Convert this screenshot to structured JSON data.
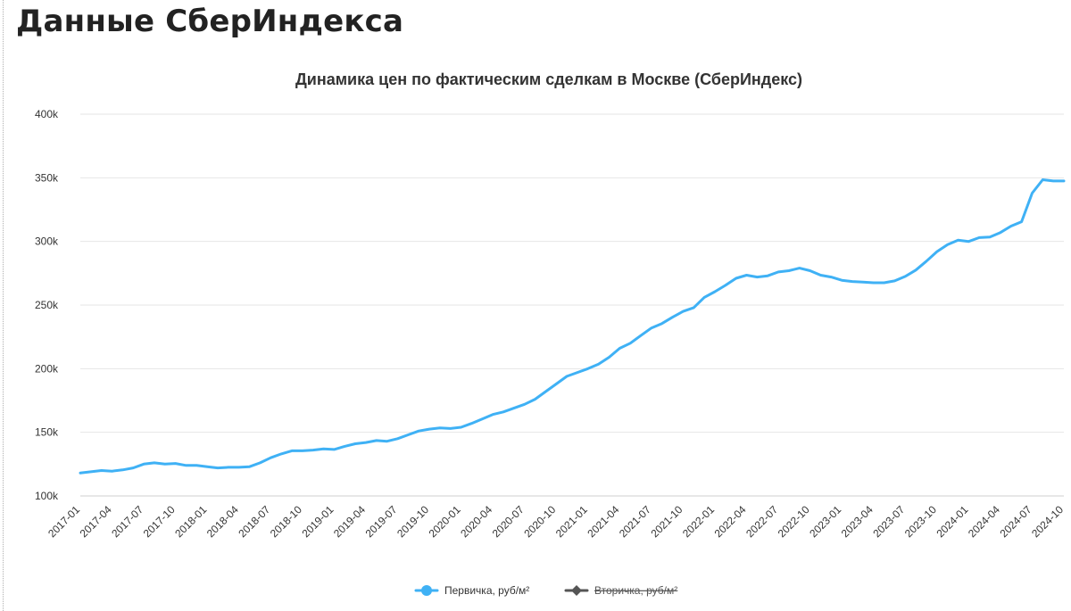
{
  "page": {
    "title": "Данные СберИндекса"
  },
  "chart_data": {
    "type": "line",
    "title": "Динамика цен по фактическим сделкам в Москве (СберИндекс)",
    "xlabel": "",
    "ylabel": "",
    "ylim": [
      100000,
      400000
    ],
    "y_ticks": [
      {
        "value": 100000,
        "label": "100k"
      },
      {
        "value": 150000,
        "label": "150k"
      },
      {
        "value": 200000,
        "label": "200k"
      },
      {
        "value": 250000,
        "label": "250k"
      },
      {
        "value": 300000,
        "label": "300k"
      },
      {
        "value": 350000,
        "label": "350k"
      },
      {
        "value": 400000,
        "label": "400k"
      }
    ],
    "x_ticks": [
      "2017-01",
      "2017-04",
      "2017-07",
      "2017-10",
      "2018-01",
      "2018-04",
      "2018-07",
      "2018-10",
      "2019-01",
      "2019-04",
      "2019-07",
      "2019-10",
      "2020-01",
      "2020-04",
      "2020-07",
      "2020-10",
      "2021-01",
      "2021-04",
      "2021-07",
      "2021-10",
      "2022-01",
      "2022-04",
      "2022-07",
      "2022-10",
      "2023-01",
      "2023-04",
      "2023-07",
      "2023-10",
      "2024-01",
      "2024-04",
      "2024-07",
      "2024-10"
    ],
    "grid": true,
    "legend_position": "bottom",
    "series": [
      {
        "name": "Первичка, руб/м²",
        "color": "#3fb1f5",
        "visible": true,
        "points": [
          [
            "2017-01",
            118000
          ],
          [
            "2017-02",
            119000
          ],
          [
            "2017-03",
            120000
          ],
          [
            "2017-04",
            119500
          ],
          [
            "2017-05",
            120500
          ],
          [
            "2017-06",
            122000
          ],
          [
            "2017-07",
            125000
          ],
          [
            "2017-08",
            126000
          ],
          [
            "2017-09",
            125000
          ],
          [
            "2017-10",
            125500
          ],
          [
            "2017-11",
            124000
          ],
          [
            "2017-12",
            124000
          ],
          [
            "2018-01",
            123000
          ],
          [
            "2018-02",
            122000
          ],
          [
            "2018-03",
            122500
          ],
          [
            "2018-04",
            122500
          ],
          [
            "2018-05",
            123000
          ],
          [
            "2018-06",
            126000
          ],
          [
            "2018-07",
            130000
          ],
          [
            "2018-08",
            133000
          ],
          [
            "2018-09",
            135500
          ],
          [
            "2018-10",
            135500
          ],
          [
            "2018-11",
            136000
          ],
          [
            "2018-12",
            137000
          ],
          [
            "2019-01",
            136500
          ],
          [
            "2019-02",
            139000
          ],
          [
            "2019-03",
            141000
          ],
          [
            "2019-04",
            142000
          ],
          [
            "2019-05",
            143500
          ],
          [
            "2019-06",
            143000
          ],
          [
            "2019-07",
            145000
          ],
          [
            "2019-08",
            148000
          ],
          [
            "2019-09",
            151000
          ],
          [
            "2019-10",
            152500
          ],
          [
            "2019-11",
            153500
          ],
          [
            "2019-12",
            153000
          ],
          [
            "2020-01",
            154000
          ],
          [
            "2020-02",
            157000
          ],
          [
            "2020-03",
            160500
          ],
          [
            "2020-04",
            164000
          ],
          [
            "2020-05",
            166000
          ],
          [
            "2020-06",
            169000
          ],
          [
            "2020-07",
            172000
          ],
          [
            "2020-08",
            176000
          ],
          [
            "2020-09",
            182000
          ],
          [
            "2020-10",
            188000
          ],
          [
            "2020-11",
            194000
          ],
          [
            "2020-12",
            197000
          ],
          [
            "2021-01",
            200000
          ],
          [
            "2021-02",
            203500
          ],
          [
            "2021-03",
            209000
          ],
          [
            "2021-04",
            216000
          ],
          [
            "2021-05",
            220000
          ],
          [
            "2021-06",
            226000
          ],
          [
            "2021-07",
            232000
          ],
          [
            "2021-08",
            235500
          ],
          [
            "2021-09",
            240500
          ],
          [
            "2021-10",
            245000
          ],
          [
            "2021-11",
            248000
          ],
          [
            "2021-12",
            256000
          ],
          [
            "2022-01",
            260500
          ],
          [
            "2022-02",
            265500
          ],
          [
            "2022-03",
            271000
          ],
          [
            "2022-04",
            273500
          ],
          [
            "2022-05",
            272000
          ],
          [
            "2022-06",
            273000
          ],
          [
            "2022-07",
            276000
          ],
          [
            "2022-08",
            277000
          ],
          [
            "2022-09",
            279000
          ],
          [
            "2022-10",
            277000
          ],
          [
            "2022-11",
            273500
          ],
          [
            "2022-12",
            272000
          ],
          [
            "2023-01",
            269500
          ],
          [
            "2023-02",
            268500
          ],
          [
            "2023-03",
            268000
          ],
          [
            "2023-04",
            267500
          ],
          [
            "2023-05",
            267500
          ],
          [
            "2023-06",
            269000
          ],
          [
            "2023-07",
            272500
          ],
          [
            "2023-08",
            277500
          ],
          [
            "2023-09",
            284500
          ],
          [
            "2023-10",
            292000
          ],
          [
            "2023-11",
            297500
          ],
          [
            "2023-12",
            301000
          ],
          [
            "2024-01",
            300000
          ],
          [
            "2024-02",
            303000
          ],
          [
            "2024-03",
            303500
          ],
          [
            "2024-04",
            307000
          ],
          [
            "2024-05",
            312000
          ],
          [
            "2024-06",
            315500
          ],
          [
            "2024-07",
            338000
          ],
          [
            "2024-08",
            348500
          ],
          [
            "2024-09",
            347500
          ],
          [
            "2024-10",
            347500
          ]
        ]
      },
      {
        "name": "Вторичка, руб/м²",
        "color": "#555555",
        "visible": false,
        "points": []
      }
    ]
  }
}
